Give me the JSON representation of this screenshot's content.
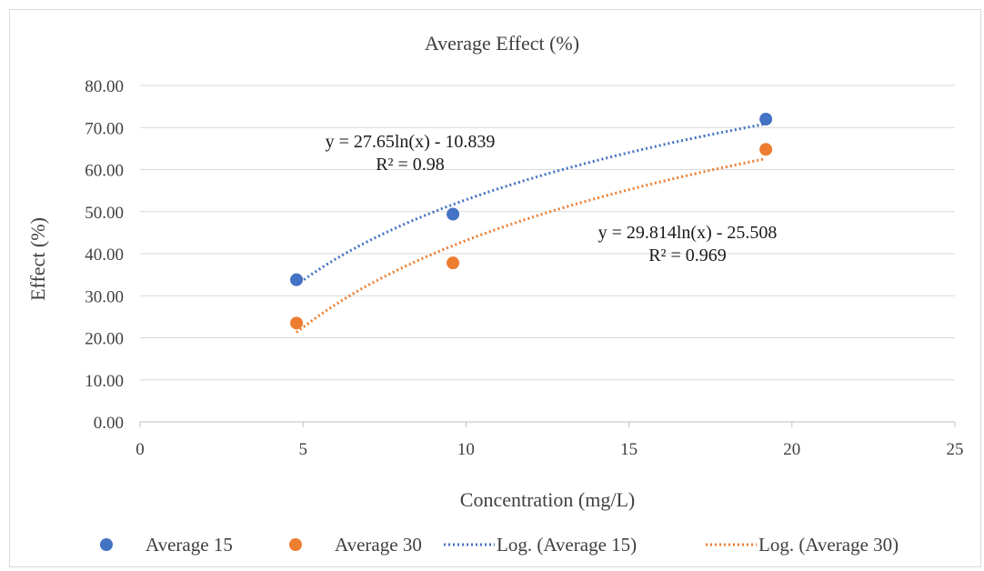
{
  "chart_data": {
    "type": "scatter",
    "title": "Average Effect (%)",
    "xlabel": "Concentration (mg/L)",
    "ylabel": "Effect  (%)",
    "xlim": [
      0,
      25
    ],
    "ylim": [
      0,
      80
    ],
    "xticks": [
      0,
      5,
      10,
      15,
      20,
      25
    ],
    "yticks": [
      0,
      10,
      20,
      30,
      40,
      50,
      60,
      70,
      80
    ],
    "xtick_labels": [
      "0",
      "5",
      "10",
      "15",
      "20",
      "25"
    ],
    "ytick_labels": [
      "0.00",
      "10.00",
      "20.00",
      "30.00",
      "40.00",
      "50.00",
      "60.00",
      "70.00",
      "80.00"
    ],
    "grid": "horizontal",
    "legend_position": "bottom",
    "series": [
      {
        "name": "Average 15",
        "color": "#4472C4",
        "x": [
          4.8,
          9.6,
          19.2
        ],
        "y": [
          33.8,
          49.4,
          72.0
        ]
      },
      {
        "name": "Average 30",
        "color": "#ED7D31",
        "x": [
          4.8,
          9.6,
          19.2
        ],
        "y": [
          23.5,
          37.8,
          64.8
        ]
      }
    ],
    "trendlines": [
      {
        "name": "Log. (Average 15)",
        "color": "#4472C4",
        "type": "log",
        "a": 27.65,
        "b": -10.839,
        "x_range": [
          4.8,
          19.2
        ],
        "equation": "y = 27.65ln(x) - 10.839",
        "r2": "R² = 0.98"
      },
      {
        "name": "Log. (Average 30)",
        "color": "#ED7D31",
        "type": "log",
        "a": 29.814,
        "b": -25.508,
        "x_range": [
          4.8,
          19.2
        ],
        "equation": "y = 29.814ln(x) - 25.508",
        "r2": "R² = 0.969"
      }
    ]
  }
}
